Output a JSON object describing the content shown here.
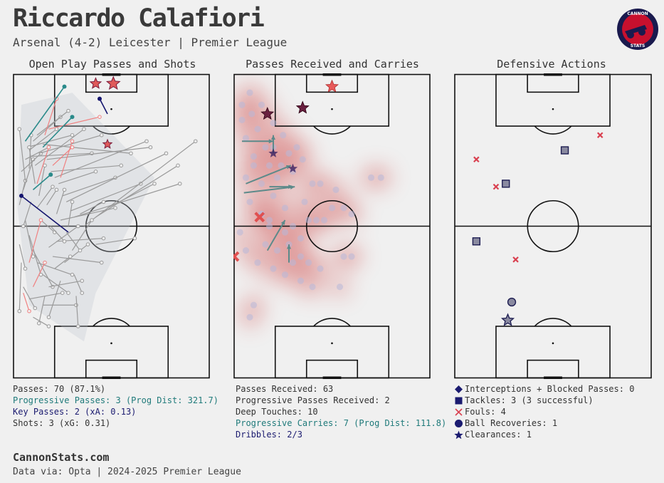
{
  "header": {
    "title": "Riccardo Calafiori",
    "subtitle": "Arsenal (4-2) Leicester | Premier League"
  },
  "logo": {
    "text_top": "CANNON",
    "text_bottom": "STATS",
    "icon": "cannon-icon"
  },
  "colors": {
    "background": "#f0f0f0",
    "pass": "#9a9a9a",
    "progressive": "#2a8a8a",
    "key_pass": "#14146e",
    "shot": "#e05a5a",
    "foul": "#d94050",
    "heat": "#c00000"
  },
  "chart_data": [
    {
      "type": "scatter",
      "title": "Open Play Passes and Shots",
      "passes": [
        {
          "from": [
            3,
            43
          ],
          "to": [
            6,
            35
          ]
        },
        {
          "from": [
            5,
            38
          ],
          "to": [
            10,
            28
          ]
        },
        {
          "from": [
            4,
            32
          ],
          "to": [
            14,
            26
          ]
        },
        {
          "from": [
            6,
            28
          ],
          "to": [
            18,
            24
          ]
        },
        {
          "from": [
            8,
            25
          ],
          "to": [
            22,
            18
          ]
        },
        {
          "from": [
            10,
            22
          ],
          "to": [
            24,
            14
          ]
        },
        {
          "from": [
            12,
            20
          ],
          "to": [
            28,
            12
          ]
        },
        {
          "from": [
            7,
            24
          ],
          "to": [
            30,
            20
          ]
        },
        {
          "from": [
            9,
            27
          ],
          "to": [
            40,
            26
          ]
        },
        {
          "from": [
            11,
            30
          ],
          "to": [
            36,
            18
          ]
        },
        {
          "from": [
            13,
            26
          ],
          "to": [
            45,
            20
          ]
        },
        {
          "from": [
            15,
            23
          ],
          "to": [
            60,
            26
          ]
        },
        {
          "from": [
            17,
            28
          ],
          "to": [
            70,
            24
          ]
        },
        {
          "from": [
            19,
            32
          ],
          "to": [
            55,
            30
          ]
        },
        {
          "from": [
            21,
            34
          ],
          "to": [
            68,
            22
          ]
        },
        {
          "from": [
            23,
            36
          ],
          "to": [
            42,
            32
          ]
        },
        {
          "from": [
            25,
            40
          ],
          "to": [
            52,
            34
          ]
        },
        {
          "from": [
            27,
            42
          ],
          "to": [
            78,
            26
          ]
        },
        {
          "from": [
            29,
            45
          ],
          "to": [
            65,
            36
          ]
        },
        {
          "from": [
            31,
            47
          ],
          "to": [
            85,
            36
          ]
        },
        {
          "from": [
            24,
            48
          ],
          "to": [
            52,
            44
          ]
        },
        {
          "from": [
            36,
            50
          ],
          "to": [
            93,
            22
          ]
        },
        {
          "from": [
            42,
            47
          ],
          "to": [
            84,
            30
          ]
        },
        {
          "from": [
            48,
            44
          ],
          "to": [
            72,
            36
          ]
        },
        {
          "from": [
            6,
            48
          ],
          "to": [
            10,
            60
          ]
        },
        {
          "from": [
            8,
            53
          ],
          "to": [
            14,
            66
          ]
        },
        {
          "from": [
            10,
            58
          ],
          "to": [
            20,
            70
          ]
        },
        {
          "from": [
            12,
            62
          ],
          "to": [
            30,
            66
          ]
        },
        {
          "from": [
            15,
            66
          ],
          "to": [
            28,
            72
          ]
        },
        {
          "from": [
            18,
            70
          ],
          "to": [
            35,
            68
          ]
        },
        {
          "from": [
            20,
            60
          ],
          "to": [
            45,
            62
          ]
        },
        {
          "from": [
            22,
            55
          ],
          "to": [
            46,
            54
          ]
        },
        {
          "from": [
            5,
            70
          ],
          "to": [
            11,
            77
          ]
        },
        {
          "from": [
            8,
            74
          ],
          "to": [
            25,
            72
          ]
        },
        {
          "from": [
            15,
            76
          ],
          "to": [
            32,
            76
          ]
        },
        {
          "from": [
            18,
            57
          ],
          "to": [
            33,
            50
          ]
        },
        {
          "from": [
            26,
            62
          ],
          "to": [
            38,
            56
          ]
        },
        {
          "from": [
            30,
            58
          ],
          "to": [
            40,
            48
          ]
        },
        {
          "from": [
            12,
            44
          ],
          "to": [
            20,
            37
          ]
        },
        {
          "from": [
            3,
            56
          ],
          "to": [
            6,
            64
          ]
        },
        {
          "from": [
            4,
            62
          ],
          "to": [
            3,
            78
          ]
        },
        {
          "from": [
            14,
            48
          ],
          "to": [
            21,
            52
          ]
        },
        {
          "from": [
            27,
            52
          ],
          "to": [
            34,
            58
          ]
        },
        {
          "from": [
            22,
            46
          ],
          "to": [
            26,
            38
          ]
        },
        {
          "from": [
            6,
            35
          ],
          "to": [
            3,
            18
          ]
        },
        {
          "from": [
            8,
            31
          ],
          "to": [
            9,
            20
          ]
        },
        {
          "from": [
            11,
            36
          ],
          "to": [
            8,
            24
          ]
        },
        {
          "from": [
            13,
            40
          ],
          "to": [
            16,
            30
          ]
        },
        {
          "from": [
            17,
            43
          ],
          "to": [
            22,
            38
          ]
        },
        {
          "from": [
            9,
            42
          ],
          "to": [
            5,
            50
          ]
        },
        {
          "from": [
            19,
            50
          ],
          "to": [
            26,
            55
          ]
        },
        {
          "from": [
            21,
            64
          ],
          "to": [
            29,
            60
          ]
        },
        {
          "from": [
            31,
            66
          ],
          "to": [
            35,
            72
          ]
        },
        {
          "from": [
            24,
            68
          ],
          "to": [
            18,
            80
          ]
        },
        {
          "from": [
            16,
            73
          ],
          "to": [
            13,
            82
          ]
        },
        {
          "from": [
            32,
            73
          ],
          "to": [
            33,
            83
          ]
        },
        {
          "from": [
            10,
            80
          ],
          "to": [
            18,
            83
          ]
        },
        {
          "from": [
            28,
            50
          ],
          "to": [
            30,
            42
          ]
        },
        {
          "from": [
            34,
            46
          ],
          "to": [
            46,
            42
          ]
        },
        {
          "from": [
            42,
            56
          ],
          "to": [
            62,
            54
          ]
        }
      ],
      "progressive_passes": [
        {
          "from": [
            6,
            22
          ],
          "to": [
            26,
            4
          ]
        },
        {
          "from": [
            10,
            38
          ],
          "to": [
            19,
            33
          ]
        },
        {
          "from": [
            15,
            24
          ],
          "to": [
            30,
            14
          ]
        }
      ],
      "key_passes": [
        {
          "from": [
            4,
            40
          ],
          "to": [
            28,
            52
          ]
        },
        {
          "from": [
            44,
            8
          ],
          "to": [
            48,
            13
          ]
        }
      ],
      "other_passes_red": [
        {
          "from": [
            12,
            36
          ],
          "to": [
            18,
            24
          ]
        },
        {
          "from": [
            16,
            20
          ],
          "to": [
            22,
            8
          ]
        },
        {
          "from": [
            18,
            18
          ],
          "to": [
            44,
            14
          ]
        },
        {
          "from": [
            20,
            30
          ],
          "to": [
            30,
            24
          ]
        },
        {
          "from": [
            8,
            62
          ],
          "to": [
            14,
            48
          ]
        },
        {
          "from": [
            10,
            70
          ],
          "to": [
            16,
            62
          ]
        },
        {
          "from": [
            5,
            72
          ],
          "to": [
            8,
            78
          ]
        },
        {
          "from": [
            24,
            34
          ],
          "to": [
            30,
            22
          ]
        }
      ],
      "shots": [
        {
          "x": 42,
          "y": 3,
          "xg": 0.1
        },
        {
          "x": 51,
          "y": 3,
          "xg": 0.18
        },
        {
          "x": 48,
          "y": 23,
          "xg": 0.03
        }
      ]
    },
    {
      "type": "heatmap",
      "title": "Passes Received and Carries",
      "received_points": [
        [
          4,
          10
        ],
        [
          8,
          6
        ],
        [
          4,
          15
        ],
        [
          9,
          13
        ],
        [
          14,
          10
        ],
        [
          12,
          18
        ],
        [
          20,
          16
        ],
        [
          16,
          24
        ],
        [
          25,
          20
        ],
        [
          28,
          26
        ],
        [
          6,
          21
        ],
        [
          10,
          27
        ],
        [
          18,
          30
        ],
        [
          22,
          34
        ],
        [
          30,
          32
        ],
        [
          35,
          28
        ],
        [
          44,
          36
        ],
        [
          52,
          38
        ],
        [
          50,
          44
        ],
        [
          56,
          44
        ],
        [
          60,
          46
        ],
        [
          14,
          36
        ],
        [
          20,
          40
        ],
        [
          26,
          44
        ],
        [
          36,
          42
        ],
        [
          40,
          36
        ],
        [
          8,
          42
        ],
        [
          14,
          46
        ],
        [
          18,
          48
        ],
        [
          26,
          52
        ],
        [
          30,
          50
        ],
        [
          34,
          54
        ],
        [
          38,
          48
        ],
        [
          42,
          48
        ],
        [
          46,
          48
        ],
        [
          56,
          60
        ],
        [
          60,
          60
        ],
        [
          70,
          34
        ],
        [
          75,
          34
        ],
        [
          3,
          52
        ],
        [
          6,
          58
        ],
        [
          12,
          62
        ],
        [
          20,
          64
        ],
        [
          26,
          66
        ],
        [
          34,
          68
        ],
        [
          40,
          70
        ],
        [
          54,
          70
        ],
        [
          10,
          76
        ],
        [
          8,
          80
        ],
        [
          14,
          46
        ],
        [
          20,
          24
        ],
        [
          24,
          30
        ],
        [
          32,
          24
        ],
        [
          6,
          34
        ],
        [
          10,
          30
        ],
        [
          16,
          56
        ],
        [
          18,
          50
        ],
        [
          22,
          58
        ],
        [
          28,
          56
        ],
        [
          30,
          62
        ],
        [
          34,
          60
        ],
        [
          38,
          62
        ],
        [
          44,
          64
        ]
      ],
      "prog_received": [
        {
          "x": 17,
          "y": 13
        },
        {
          "x": 35,
          "y": 11
        }
      ],
      "deep_touches_shown": [
        {
          "x": 20,
          "y": 26
        },
        {
          "x": 30,
          "y": 31
        }
      ],
      "carries": [
        {
          "from": [
            4,
            22
          ],
          "to": [
            20,
            22
          ]
        },
        {
          "from": [
            6,
            36
          ],
          "to": [
            29,
            30
          ]
        },
        {
          "from": [
            5,
            39
          ],
          "to": [
            31,
            37
          ]
        },
        {
          "from": [
            18,
            37
          ],
          "to": [
            30,
            37
          ]
        },
        {
          "from": [
            17,
            58
          ],
          "to": [
            26,
            48
          ]
        },
        {
          "from": [
            28,
            62
          ],
          "to": [
            28,
            56
          ]
        },
        {
          "from": [
            20,
            26
          ],
          "to": [
            20,
            20
          ]
        }
      ],
      "dribbles": [
        {
          "x": 13,
          "y": 47,
          "successful": true
        },
        {
          "x": 0,
          "y": 60,
          "successful": true
        },
        {
          "x": 50,
          "y": 4,
          "successful": false
        }
      ]
    },
    {
      "type": "scatter",
      "title": "Defensive Actions",
      "tackles": [
        {
          "x": 56,
          "y": 25
        },
        {
          "x": 26,
          "y": 36
        },
        {
          "x": 11,
          "y": 55
        }
      ],
      "fouls": [
        {
          "x": 74,
          "y": 20
        },
        {
          "x": 11,
          "y": 28
        },
        {
          "x": 21,
          "y": 37
        },
        {
          "x": 31,
          "y": 61
        }
      ],
      "ball_recoveries": [
        {
          "x": 29,
          "y": 75
        }
      ],
      "clearances": [
        {
          "x": 27,
          "y": 81
        }
      ],
      "interceptions": []
    }
  ],
  "panel1": {
    "title": "Open Play Passes and Shots",
    "stats": [
      {
        "text": "Passes: 70 (87.1%)",
        "cls": ""
      },
      {
        "text": "Progressive Passes: 3 (Prog Dist: 321.7)",
        "cls": "teal"
      },
      {
        "text": "Key Passes: 2 (xA: 0.13)",
        "cls": "navy"
      },
      {
        "text": "Shots: 3 (xG: 0.31)",
        "cls": ""
      }
    ]
  },
  "panel2": {
    "title": "Passes Received and Carries",
    "stats": [
      {
        "text": "Passes Received: 63",
        "cls": ""
      },
      {
        "text": "Progressive Passes Received: 2",
        "cls": ""
      },
      {
        "text": "Deep Touches: 10",
        "cls": ""
      },
      {
        "text": "Progressive Carries: 7 (Prog Dist: 111.8)",
        "cls": "teal"
      },
      {
        "text": "Dribbles: 2/3",
        "cls": "navy"
      }
    ]
  },
  "panel3": {
    "title": "Defensive Actions",
    "legend": [
      {
        "icon": "diamond-icon",
        "text": "Interceptions + Blocked Passes: 0"
      },
      {
        "icon": "square-icon",
        "text": "Tackles: 3 (3 successful)"
      },
      {
        "icon": "cross-icon",
        "text": "Fouls: 4"
      },
      {
        "icon": "circle-icon",
        "text": "Ball Recoveries: 1"
      },
      {
        "icon": "star-icon",
        "text": "Clearances: 1"
      }
    ]
  },
  "footer": {
    "brand": "CannonStats.com",
    "source": "Data via: Opta | 2024-2025 Premier League"
  }
}
